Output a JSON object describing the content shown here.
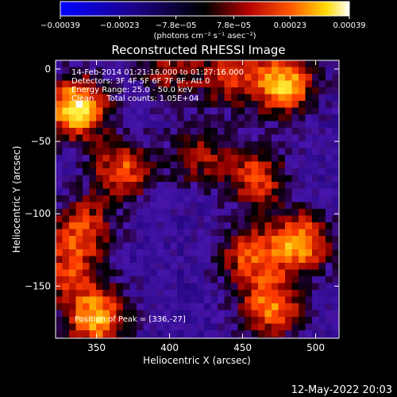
{
  "chart_data": {
    "type": "heatmap",
    "title": "Reconstructed RHESSI Image",
    "xlabel": "Heliocentric X (arcsec)",
    "ylabel": "Heliocentric Y (arcsec)",
    "xlim": [
      322,
      516
    ],
    "ylim": [
      -186,
      6
    ],
    "x_ticks": [
      350,
      400,
      450,
      500
    ],
    "y_ticks": [
      0,
      -50,
      -100,
      -150
    ],
    "x_tick_labels": [
      "350",
      "400",
      "450",
      "500"
    ],
    "y_tick_labels": [
      "0",
      "−50",
      "−100",
      "−150"
    ],
    "colorbar": {
      "ticks": [
        -0.00039,
        -0.00023,
        -7.8e-05,
        7.8e-05,
        0.00023,
        0.00039
      ],
      "tick_labels": [
        "−0.00039",
        "−0.00023",
        "−7.8e−05",
        "7.8e−05",
        "0.00023",
        "0.00039"
      ],
      "unit": "(photons cm⁻² s⁻¹ asec⁻²)",
      "range": [
        -0.00039,
        0.00039
      ]
    },
    "annotations": {
      "time": "14-Feb-2014 01:21:16.000 to 01:27:16.000",
      "detectors": "Detectors: 3F 4F 5F 6F 7F 8F, Att 0",
      "energy": "Energy Range: 25.0 - 50.0 keV",
      "method": "Clean     Total counts: 1.05E+04",
      "peak": "Position of Peak = [336,-27]"
    },
    "bright_regions": [
      {
        "x": 336,
        "y": -27,
        "level": 1.0
      },
      {
        "x": 478,
        "y": -10,
        "level": 0.9
      },
      {
        "x": 440,
        "y": -5,
        "level": 0.5
      },
      {
        "x": 400,
        "y": 0,
        "level": 0.45
      },
      {
        "x": 490,
        "y": -120,
        "level": 0.8
      },
      {
        "x": 455,
        "y": -130,
        "level": 0.6
      },
      {
        "x": 350,
        "y": -172,
        "level": 0.85
      },
      {
        "x": 470,
        "y": -165,
        "level": 0.7
      },
      {
        "x": 340,
        "y": -110,
        "level": 0.6
      },
      {
        "x": 368,
        "y": -70,
        "level": 0.65
      },
      {
        "x": 460,
        "y": -75,
        "level": 0.6
      },
      {
        "x": 420,
        "y": -60,
        "level": 0.45
      },
      {
        "x": 330,
        "y": -140,
        "level": 0.5
      }
    ]
  },
  "footer_date": "12-May-2022 20:03"
}
